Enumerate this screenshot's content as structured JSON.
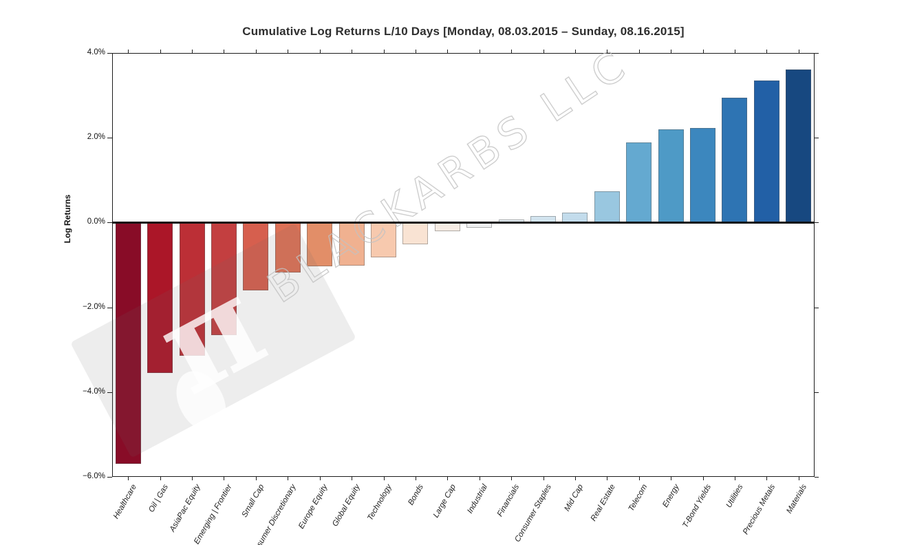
{
  "watermark": {
    "text": "BLACKARBS LLC",
    "logo_symbol": "π"
  },
  "chart_data": {
    "type": "bar",
    "title": "Cumulative Log Returns L/10 Days [Monday, 08.03.2015 – Sunday, 08.16.2015]",
    "xlabel": "",
    "ylabel": "Log Returns",
    "ylim": [
      -6.0,
      4.0
    ],
    "yticks": [
      4.0,
      2.0,
      0.0,
      -2.0,
      -4.0,
      -6.0
    ],
    "ytick_labels": [
      "4.0%",
      "2.0%",
      "0.0%",
      "−2.0%",
      "−4.0%",
      "−6.0%"
    ],
    "grid": false,
    "legend": null,
    "value_unit": "percent (log returns)",
    "categories": [
      "Healthcare",
      "Oil | Gas",
      "AsiaPac Equity",
      "Emerging | Frontier",
      "Small Cap",
      "Consumer Discretionary",
      "Europe Equity",
      "Global Equity",
      "Technology",
      "Bonds",
      "Large Cap",
      "Industrial",
      "Financials",
      "Consumer Staples",
      "Mid Cap",
      "Real Estate",
      "Telecom",
      "Energy",
      "T-Bond Yields",
      "Utilities",
      "Precious Metals",
      "Materials"
    ],
    "values": [
      -5.69,
      -3.55,
      -3.14,
      -2.66,
      -1.6,
      -1.18,
      -1.04,
      -1.01,
      -0.83,
      -0.52,
      -0.21,
      -0.12,
      0.08,
      0.16,
      0.23,
      0.73,
      1.89,
      2.2,
      2.23,
      2.95,
      3.35,
      3.61
    ],
    "bar_colors": [
      "#880c27",
      "#ab1628",
      "#bc2f36",
      "#c33f40",
      "#d65f4e",
      "#dd7156",
      "#e28e68",
      "#f0b190",
      "#f7c9ae",
      "#f9e3d3",
      "#f6ece4",
      "#f0f1f2",
      "#e4edf3",
      "#d3e5f0",
      "#c3dcec",
      "#99c7e0",
      "#64a9d0",
      "#4e9ac6",
      "#3c87be",
      "#2e74b3",
      "#2260a6",
      "#174880"
    ]
  }
}
